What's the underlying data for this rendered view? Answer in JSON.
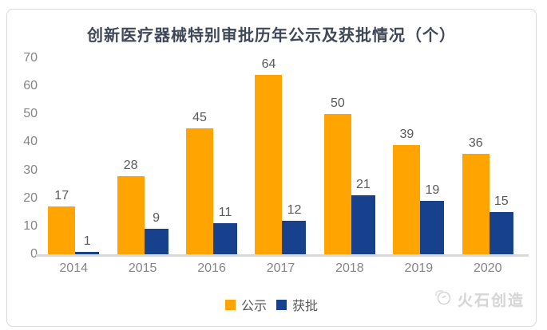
{
  "title": "创新医疗器械特别审批历年公示及获批情况（个）",
  "watermark": {
    "text": "火石创造",
    "icon": "huoshi-logo-icon"
  },
  "colors": {
    "series_gongshi": "#FFA400",
    "series_huopi": "#17418C",
    "title_text": "#404756",
    "axis_label": "#858585",
    "value_label": "#595959",
    "baseline": "#D9D9D9",
    "card_border": "#D9D9D9",
    "watermark_text": "#D6D6D6"
  },
  "chart_data": {
    "type": "bar",
    "title": "创新医疗器械特别审批历年公示及获批情况（个）",
    "categories": [
      "2014",
      "2015",
      "2016",
      "2017",
      "2018",
      "2019",
      "2020"
    ],
    "series": [
      {
        "name": "公示",
        "color": "#FFA400",
        "values": [
          17,
          28,
          45,
          64,
          50,
          39,
          36
        ]
      },
      {
        "name": "获批",
        "color": "#17418C",
        "values": [
          1,
          9,
          11,
          12,
          21,
          19,
          15
        ]
      }
    ],
    "xlabel": "",
    "ylabel": "",
    "ylim": [
      0,
      70
    ],
    "yticks": [
      0,
      10,
      20,
      30,
      40,
      50,
      60,
      70
    ],
    "grid": false,
    "legend_position": "bottom",
    "value_labels": true
  }
}
